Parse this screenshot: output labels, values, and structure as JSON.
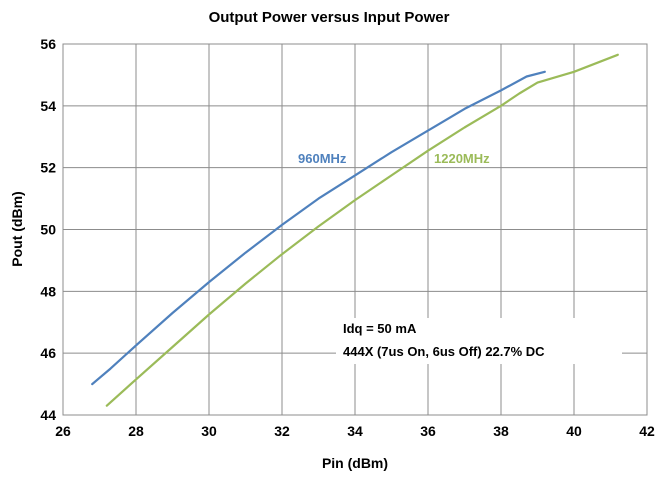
{
  "chart_data": {
    "type": "line",
    "title": "Output Power versus Input Power",
    "xlabel": "Pin (dBm)",
    "ylabel": "Pout (dBm)",
    "xlim": [
      26,
      42
    ],
    "ylim": [
      44,
      56
    ],
    "x_ticks": [
      26,
      28,
      30,
      32,
      34,
      36,
      38,
      40,
      42
    ],
    "y_ticks": [
      44,
      46,
      48,
      50,
      52,
      54,
      56
    ],
    "x_tick_labels": [
      "26",
      "28",
      "30",
      "32",
      "34",
      "36",
      "38",
      "40",
      "42"
    ],
    "y_tick_labels": [
      "44",
      "46",
      "48",
      "50",
      "52",
      "54",
      "56"
    ],
    "grid": true,
    "series": [
      {
        "name": "960MHz",
        "color": "#4f81bd",
        "x": [
          26.8,
          27.3,
          28,
          29,
          30,
          31,
          32,
          33,
          34,
          35,
          36,
          37,
          38,
          38.7,
          39.2
        ],
        "y": [
          45.0,
          45.5,
          46.25,
          47.3,
          48.3,
          49.25,
          50.15,
          51.0,
          51.75,
          52.5,
          53.2,
          53.9,
          54.5,
          54.95,
          55.1
        ]
      },
      {
        "name": "1220MHz",
        "color": "#9bbb59",
        "x": [
          27.2,
          28,
          29,
          30,
          31,
          32,
          33,
          34,
          35,
          36,
          37,
          38,
          38.5,
          39,
          40,
          41.2
        ],
        "y": [
          44.3,
          45.15,
          46.2,
          47.25,
          48.25,
          49.2,
          50.1,
          50.95,
          51.75,
          52.55,
          53.3,
          54.0,
          54.4,
          54.75,
          55.1,
          55.65
        ]
      }
    ],
    "annotations": [
      "Idq = 50 mA",
      "444X (7us On, 6us Off) 22.7% DC"
    ]
  }
}
